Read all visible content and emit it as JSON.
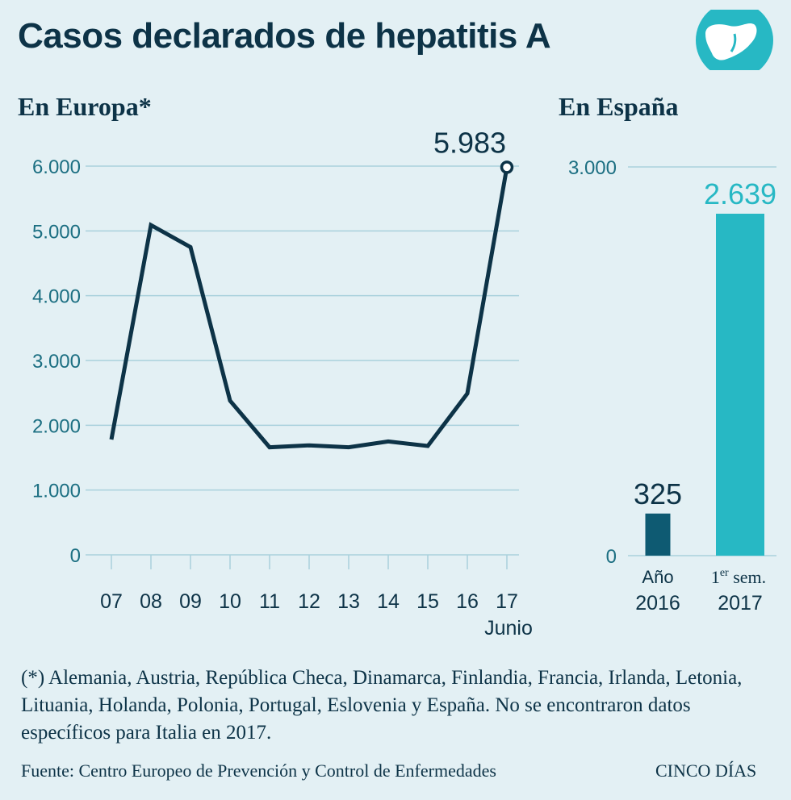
{
  "header": {
    "title": "Casos declarados de hepatitis A"
  },
  "colors": {
    "dark": "#0d3347",
    "bar_dark": "#0e5a72",
    "teal": "#27b8c4",
    "grid": "#a9d1dc",
    "axis_text": "#1c6f82",
    "bg": "#e3f0f4"
  },
  "icons": {
    "logo": "liver-icon"
  },
  "europe": {
    "subtitle": "En Europa*",
    "xunit": "Junio",
    "peak_label": "5.983"
  },
  "spain": {
    "subtitle": "En España",
    "bar_labels": [
      {
        "line1": "Año",
        "line2": "2016"
      },
      {
        "line1_base": "1",
        "line1_sup": "er",
        "line1_rest": " sem.",
        "line2": "2017"
      }
    ]
  },
  "chart_data": [
    {
      "type": "line",
      "title": "En Europa*",
      "categories": [
        "07",
        "08",
        "09",
        "10",
        "11",
        "12",
        "13",
        "14",
        "15",
        "16",
        "17"
      ],
      "values": [
        1780,
        5090,
        4750,
        2380,
        1660,
        1690,
        1660,
        1750,
        1680,
        2490,
        5983
      ],
      "yticks": [
        0,
        1000,
        2000,
        3000,
        4000,
        5000,
        6000
      ],
      "ytick_labels": [
        "0",
        "1.000",
        "2.000",
        "3.000",
        "4.000",
        "5.000",
        "6.000"
      ],
      "ylim": [
        0,
        6000
      ],
      "xlabel": "Junio",
      "annotation": "5.983",
      "grid": true
    },
    {
      "type": "bar",
      "title": "En España",
      "categories": [
        "Año 2016",
        "1er sem. 2017"
      ],
      "values": [
        325,
        2639
      ],
      "value_labels": [
        "325",
        "2.639"
      ],
      "yticks": [
        0,
        3000
      ],
      "ytick_labels": [
        "0",
        "3.000"
      ],
      "ylim": [
        0,
        3000
      ],
      "grid": true
    }
  ],
  "footer": {
    "note": "(*) Alemania, Austria, República Checa, Dinamarca, Finlandia, Francia, Irlanda, Letonia, Lituania, Holanda, Polonia, Portugal, Eslovenia y España. No se encontraron datos específicos para Italia en 2017.",
    "source": "Fuente: Centro Europeo de Prevención y Control de Enfermedades",
    "brand": "CINCO DÍAS"
  }
}
